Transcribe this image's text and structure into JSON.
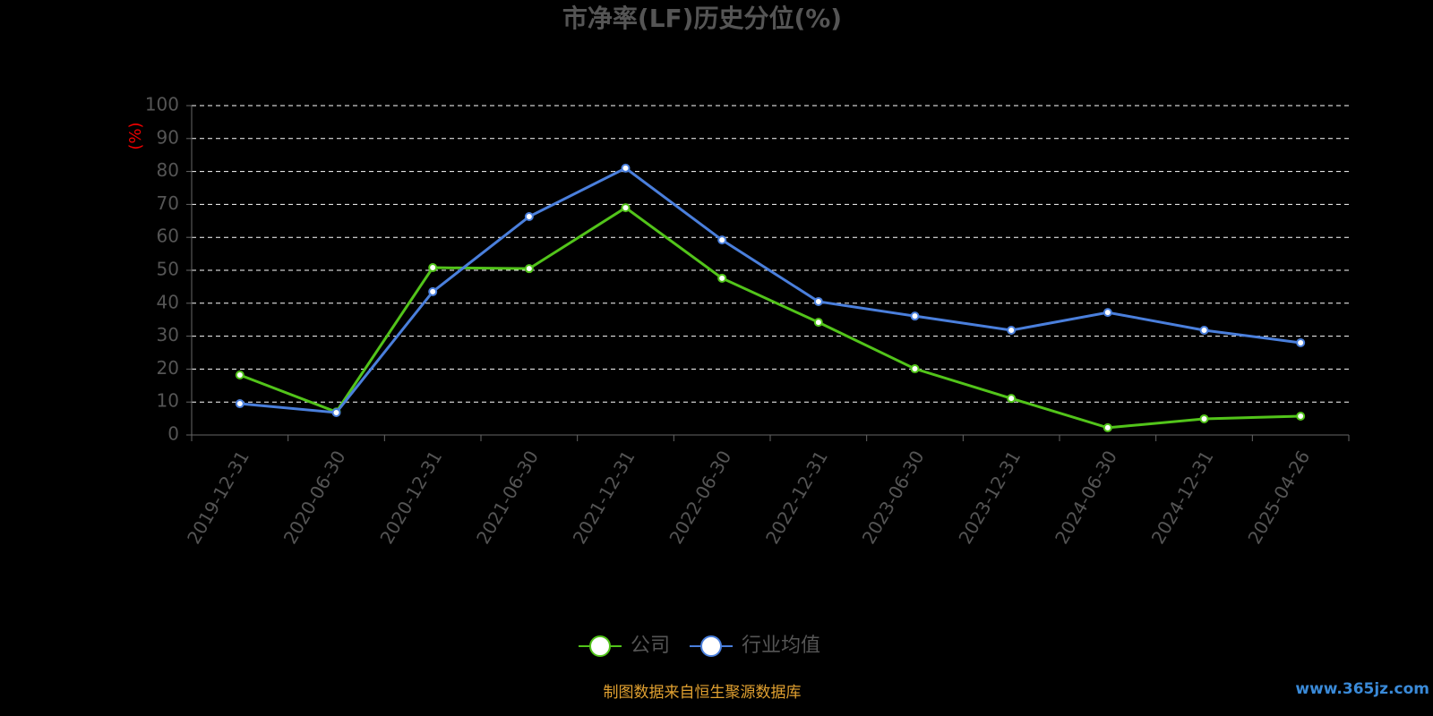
{
  "chart_data": {
    "type": "line",
    "title": "市净率(LF)历史分位(%)",
    "y_label": "(%)",
    "categories": [
      "2019-12-31",
      "2020-06-30",
      "2020-12-31",
      "2021-06-30",
      "2021-12-31",
      "2022-06-30",
      "2022-12-31",
      "2023-06-30",
      "2023-12-31",
      "2024-06-30",
      "2024-12-31",
      "2025-04-26"
    ],
    "series": [
      {
        "name": "公司",
        "color": "#52c41a",
        "values": [
          18.2,
          7,
          50.8,
          50.5,
          69,
          47.6,
          34.2,
          20.1,
          11.1,
          2.2,
          4.9,
          5.7
        ]
      },
      {
        "name": "行业均值",
        "color": "#4a7fdc",
        "values": [
          9.5,
          6.8,
          43.5,
          66.3,
          81,
          59.2,
          40.5,
          36.1,
          31.8,
          37.2,
          31.8,
          28
        ]
      }
    ],
    "ylim": [
      0,
      100
    ],
    "yticks": [
      0,
      10,
      20,
      30,
      40,
      50,
      60,
      70,
      80,
      90,
      100
    ],
    "grid": true,
    "legend": "bottom",
    "source": "制图数据来自恒生聚源数据库",
    "watermark": "www.365jz.com"
  }
}
